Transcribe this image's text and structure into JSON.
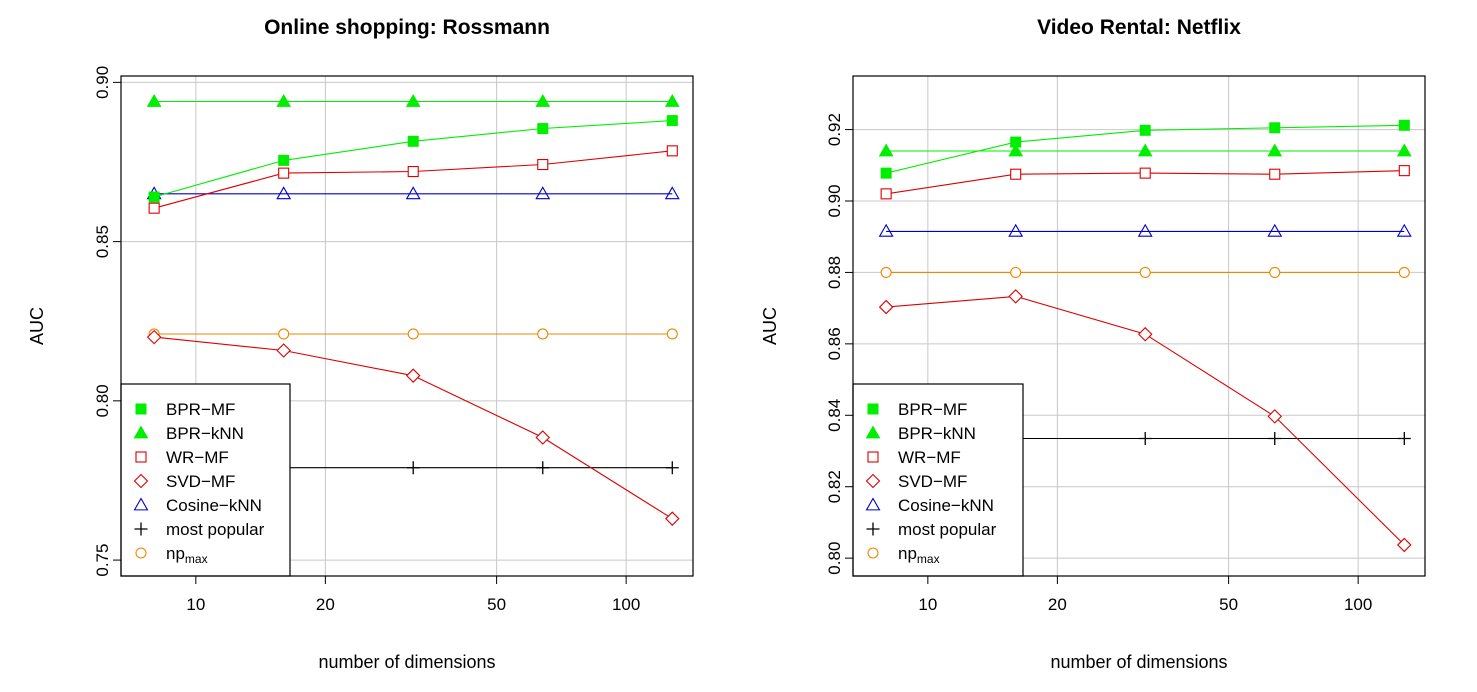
{
  "chart_data": [
    {
      "type": "line",
      "title": "Online shopping: Rossmann",
      "xlabel": "number of dimensions",
      "ylabel": "AUC",
      "xscale": "log",
      "x": [
        8,
        16,
        32,
        64,
        128
      ],
      "xticks": [
        "10",
        "20",
        "50",
        "100"
      ],
      "yticks": [
        "0.75",
        "0.80",
        "0.85",
        "0.90"
      ],
      "ylim": [
        0.745,
        0.902
      ],
      "grid": true,
      "legend_position": "bottom-left",
      "series": [
        {
          "name": "BPR−MF",
          "color": "#00ee00",
          "marker": "filled-square",
          "values": [
            0.864,
            0.8755,
            0.8815,
            0.8855,
            0.888
          ]
        },
        {
          "name": "BPR−kNN",
          "color": "#00ee00",
          "marker": "filled-triangle",
          "values": [
            0.894,
            0.894,
            0.894,
            0.894,
            0.894
          ]
        },
        {
          "name": "WR−MF",
          "color": "#dd0000",
          "marker": "open-square",
          "values": [
            0.8605,
            0.8715,
            0.872,
            0.8742,
            0.8785
          ]
        },
        {
          "name": "SVD−MF",
          "color": "#dd0000",
          "marker": "open-diamond",
          "values": [
            0.82,
            0.8158,
            0.8079,
            0.7885,
            0.763
          ]
        },
        {
          "name": "Cosine−kNN",
          "color": "#0000cc",
          "marker": "open-triangle",
          "values": [
            0.865,
            0.865,
            0.865,
            0.865,
            0.865
          ]
        },
        {
          "name": "most popular",
          "color": "#000000",
          "marker": "plus",
          "values": [
            0.779,
            0.779,
            0.779,
            0.779,
            0.779
          ]
        },
        {
          "name": "np",
          "sub": "max",
          "color": "#ee8800",
          "marker": "open-circle",
          "values": [
            0.821,
            0.821,
            0.821,
            0.821,
            0.821
          ]
        }
      ]
    },
    {
      "type": "line",
      "title": "Video Rental: Netflix",
      "xlabel": "number of dimensions",
      "ylabel": "AUC",
      "xscale": "log",
      "x": [
        8,
        16,
        32,
        64,
        128
      ],
      "xticks": [
        "10",
        "20",
        "50",
        "100"
      ],
      "yticks": [
        "0.80",
        "0.82",
        "0.84",
        "0.86",
        "0.88",
        "0.90",
        "0.92"
      ],
      "ylim": [
        0.795,
        0.935
      ],
      "grid": true,
      "legend_position": "bottom-left",
      "series": [
        {
          "name": "BPR−MF",
          "color": "#00ee00",
          "marker": "filled-square",
          "values": [
            0.9078,
            0.9165,
            0.9198,
            0.9205,
            0.9212
          ]
        },
        {
          "name": "BPR−kNN",
          "color": "#00ee00",
          "marker": "filled-triangle",
          "values": [
            0.914,
            0.914,
            0.914,
            0.914,
            0.914
          ]
        },
        {
          "name": "WR−MF",
          "color": "#dd0000",
          "marker": "open-square",
          "values": [
            0.902,
            0.9075,
            0.9078,
            0.9075,
            0.9085
          ]
        },
        {
          "name": "SVD−MF",
          "color": "#dd0000",
          "marker": "open-diamond",
          "values": [
            0.8703,
            0.8733,
            0.8627,
            0.8397,
            0.8037
          ]
        },
        {
          "name": "Cosine−kNN",
          "color": "#0000cc",
          "marker": "open-triangle",
          "values": [
            0.8915,
            0.8915,
            0.8915,
            0.8915,
            0.8915
          ]
        },
        {
          "name": "most popular",
          "color": "#000000",
          "marker": "plus",
          "values": [
            0.8335,
            0.8335,
            0.8335,
            0.8335,
            0.8335
          ]
        },
        {
          "name": "np",
          "sub": "max",
          "color": "#ee8800",
          "marker": "open-circle",
          "values": [
            0.88,
            0.88,
            0.88,
            0.88,
            0.88
          ]
        }
      ]
    }
  ]
}
